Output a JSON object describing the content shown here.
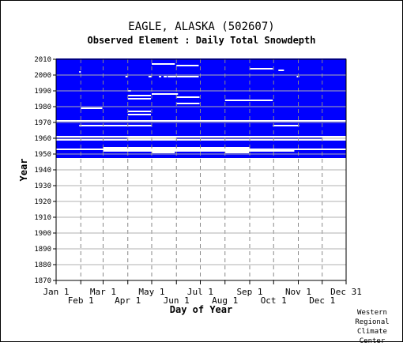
{
  "title": "EAGLE, ALASKA   (502607)",
  "subtitle": "Observed Element : Daily Total Snowdepth",
  "credit": "Western\nRegional\nClimate\nCenter",
  "colors": {
    "data": "#0000ff",
    "grid": "#888888",
    "axis": "#000000"
  },
  "chart_data": {
    "type": "heatmap",
    "title": "EAGLE, ALASKA   (502607)",
    "subtitle": "Observed Element : Daily Total Snowdepth",
    "xlabel": "Day of Year",
    "ylabel": "Year",
    "xlim": [
      1,
      365
    ],
    "ylim": [
      1870,
      2010
    ],
    "grid": true,
    "x_ticks": [
      {
        "day": 1,
        "label": "Jan 1",
        "row": 0
      },
      {
        "day": 32,
        "label": "Feb 1",
        "row": 1
      },
      {
        "day": 60,
        "label": "Mar 1",
        "row": 0
      },
      {
        "day": 91,
        "label": "Apr 1",
        "row": 1
      },
      {
        "day": 121,
        "label": "May 1",
        "row": 0
      },
      {
        "day": 152,
        "label": "Jun 1",
        "row": 1
      },
      {
        "day": 182,
        "label": "Jul 1",
        "row": 0
      },
      {
        "day": 213,
        "label": "Aug 1",
        "row": 1
      },
      {
        "day": 244,
        "label": "Sep 1",
        "row": 0
      },
      {
        "day": 274,
        "label": "Oct 1",
        "row": 1
      },
      {
        "day": 305,
        "label": "Nov 1",
        "row": 0
      },
      {
        "day": 335,
        "label": "Dec 1",
        "row": 1
      },
      {
        "day": 365,
        "label": "Dec 31",
        "row": 0
      }
    ],
    "y_ticks": [
      1870,
      1880,
      1890,
      1900,
      1910,
      1920,
      1930,
      1940,
      1950,
      1960,
      1970,
      1980,
      1990,
      2000,
      2010
    ],
    "data_blocks": [
      {
        "year_start": 1972,
        "year_end": 2010,
        "day_start": 1,
        "day_end": 365
      },
      {
        "year_start": 1969,
        "year_end": 1970,
        "day_start": 1,
        "day_end": 365
      },
      {
        "year_start": 1966,
        "year_end": 1967,
        "day_start": 1,
        "day_end": 365
      },
      {
        "year_start": 1962,
        "year_end": 1965,
        "day_start": 1,
        "day_end": 365
      },
      {
        "year_start": 1955,
        "year_end": 1958,
        "day_start": 1,
        "day_end": 365
      },
      {
        "year_start": 1948,
        "year_end": 1951,
        "day_start": 1,
        "day_end": 365
      }
    ],
    "missing_segments": [
      {
        "year": 2007,
        "day_start": 121,
        "day_end": 150
      },
      {
        "year": 2006,
        "day_start": 152,
        "day_end": 180
      },
      {
        "year": 2004,
        "day_start": 244,
        "day_end": 273
      },
      {
        "year": 2003,
        "day_start": 280,
        "day_end": 287
      },
      {
        "year": 2002,
        "day_start": 30,
        "day_end": 32
      },
      {
        "year": 1999,
        "day_start": 88,
        "day_end": 91
      },
      {
        "year": 1999,
        "day_start": 117,
        "day_end": 121
      },
      {
        "year": 1999,
        "day_start": 130,
        "day_end": 133
      },
      {
        "year": 1999,
        "day_start": 136,
        "day_end": 140
      },
      {
        "year": 1999,
        "day_start": 141,
        "day_end": 180
      },
      {
        "year": 1999,
        "day_start": 303,
        "day_end": 306
      },
      {
        "year": 1990,
        "day_start": 91,
        "day_end": 95
      },
      {
        "year": 1988,
        "day_start": 121,
        "day_end": 154
      },
      {
        "year": 1987,
        "day_start": 91,
        "day_end": 120
      },
      {
        "year": 1986,
        "day_start": 152,
        "day_end": 181
      },
      {
        "year": 1985,
        "day_start": 91,
        "day_end": 120
      },
      {
        "year": 1984,
        "day_start": 213,
        "day_end": 244
      },
      {
        "year": 1984,
        "day_start": 244,
        "day_end": 273
      },
      {
        "year": 1982,
        "day_start": 152,
        "day_end": 181
      },
      {
        "year": 1979,
        "day_start": 32,
        "day_end": 59
      },
      {
        "year": 1977,
        "day_start": 91,
        "day_end": 120
      },
      {
        "year": 1975,
        "day_start": 91,
        "day_end": 120
      },
      {
        "year": 1968,
        "day_start": 31,
        "day_end": 59
      },
      {
        "year": 1968,
        "day_start": 274,
        "day_end": 305
      },
      {
        "year": 1961,
        "day_start": 1,
        "day_end": 365
      },
      {
        "year": 1959,
        "day_start": 1,
        "day_end": 365
      },
      {
        "year": 1953,
        "day_start": 1,
        "day_end": 365
      },
      {
        "year": 1952,
        "day_start": 152,
        "day_end": 181
      },
      {
        "year": 1951,
        "day_start": 121,
        "day_end": 150
      },
      {
        "year": 1951,
        "day_start": 213,
        "day_end": 243
      }
    ],
    "extra_segments": [
      {
        "year": 1968,
        "day_start": 1,
        "day_end": 30
      },
      {
        "year": 1968,
        "day_start": 121,
        "day_end": 273
      },
      {
        "year": 1968,
        "day_start": 306,
        "day_end": 365
      },
      {
        "year": 1960,
        "day_start": 1,
        "day_end": 90
      },
      {
        "year": 1960,
        "day_start": 152,
        "day_end": 335
      },
      {
        "year": 1954,
        "day_start": 1,
        "day_end": 60
      },
      {
        "year": 1954,
        "day_start": 244,
        "day_end": 365
      },
      {
        "year": 1952,
        "day_start": 1,
        "day_end": 60
      },
      {
        "year": 1952,
        "day_start": 300,
        "day_end": 365
      }
    ]
  }
}
